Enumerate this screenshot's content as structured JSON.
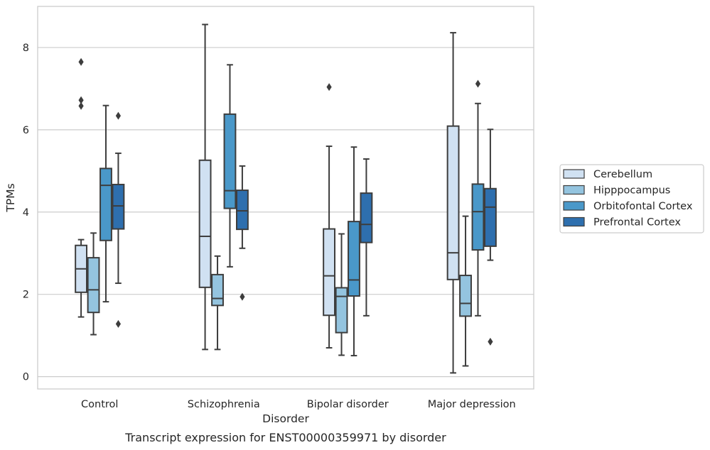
{
  "chart_data": {
    "type": "box",
    "caption": "Transcript expression for ENST00000359971 by disorder",
    "xlabel": "Disorder",
    "ylabel": "TPMs",
    "ylim": [
      -0.3,
      9.0
    ],
    "yticks": [
      0,
      2,
      4,
      6,
      8
    ],
    "grid": true,
    "legend_position": "right",
    "categories": [
      "Control",
      "Schizophrenia",
      "Bipolar disorder",
      "Major depression"
    ],
    "series": [
      {
        "name": "Cerebellum",
        "color": "#d0e1f2",
        "boxes": [
          {
            "whisker_low": 1.45,
            "q1": 2.05,
            "median": 2.62,
            "q3": 3.19,
            "whisker_high": 3.33,
            "outliers": [
              6.58,
              6.72,
              7.65
            ]
          },
          {
            "whisker_low": 0.66,
            "q1": 2.17,
            "median": 3.41,
            "q3": 5.26,
            "whisker_high": 8.56,
            "outliers": []
          },
          {
            "whisker_low": 0.7,
            "q1": 1.49,
            "median": 2.45,
            "q3": 3.59,
            "whisker_high": 5.6,
            "outliers": [
              7.04
            ]
          },
          {
            "whisker_low": 0.09,
            "q1": 2.36,
            "median": 3.01,
            "q3": 6.09,
            "whisker_high": 8.36,
            "outliers": []
          }
        ]
      },
      {
        "name": "Hipppocampus",
        "color": "#94c4df",
        "boxes": [
          {
            "whisker_low": 1.02,
            "q1": 1.56,
            "median": 2.11,
            "q3": 2.89,
            "whisker_high": 3.49,
            "outliers": []
          },
          {
            "whisker_low": 0.66,
            "q1": 1.73,
            "median": 1.9,
            "q3": 2.48,
            "whisker_high": 2.93,
            "outliers": []
          },
          {
            "whisker_low": 0.52,
            "q1": 1.07,
            "median": 1.95,
            "q3": 2.16,
            "whisker_high": 3.47,
            "outliers": []
          },
          {
            "whisker_low": 0.26,
            "q1": 1.47,
            "median": 1.78,
            "q3": 2.46,
            "whisker_high": 3.9,
            "outliers": []
          }
        ]
      },
      {
        "name": "Orbitofontal Cortex",
        "color": "#4a98c9",
        "boxes": [
          {
            "whisker_low": 1.82,
            "q1": 3.31,
            "median": 4.65,
            "q3": 5.06,
            "whisker_high": 6.59,
            "outliers": []
          },
          {
            "whisker_low": 2.67,
            "q1": 4.09,
            "median": 4.52,
            "q3": 6.38,
            "whisker_high": 7.58,
            "outliers": []
          },
          {
            "whisker_low": 0.51,
            "q1": 1.96,
            "median": 2.35,
            "q3": 3.77,
            "whisker_high": 5.58,
            "outliers": []
          },
          {
            "whisker_low": 1.48,
            "q1": 3.08,
            "median": 4.01,
            "q3": 4.68,
            "whisker_high": 6.64,
            "outliers": [
              7.12
            ]
          }
        ]
      },
      {
        "name": "Prefrontal Cortex",
        "color": "#2e6fae",
        "boxes": [
          {
            "whisker_low": 2.27,
            "q1": 3.59,
            "median": 4.15,
            "q3": 4.67,
            "whisker_high": 5.43,
            "outliers": [
              6.34,
              1.28
            ]
          },
          {
            "whisker_low": 3.12,
            "q1": 3.58,
            "median": 4.03,
            "q3": 4.53,
            "whisker_high": 5.12,
            "outliers": [
              1.94
            ]
          },
          {
            "whisker_low": 1.48,
            "q1": 3.26,
            "median": 3.7,
            "q3": 4.46,
            "whisker_high": 5.29,
            "outliers": []
          },
          {
            "whisker_low": 2.83,
            "q1": 3.17,
            "median": 4.12,
            "q3": 4.57,
            "whisker_high": 6.01,
            "outliers": [
              0.85
            ]
          }
        ]
      }
    ]
  }
}
